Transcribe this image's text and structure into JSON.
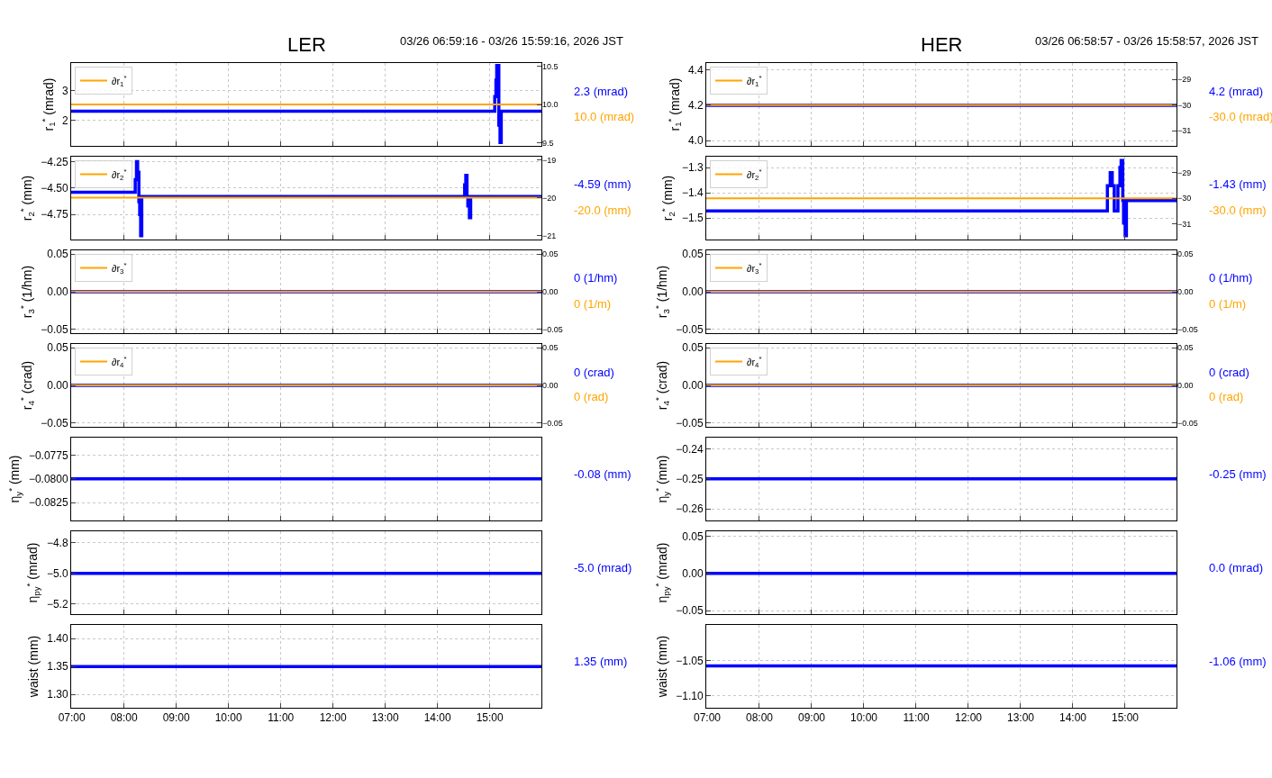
{
  "chart_data": [
    {
      "type": "step",
      "title": "LER",
      "subtitle": "03/26 06:59:16 - 03/26 15:59:16, 2026 JST",
      "ylabel": "r$_{1}$$^{*}$ (mrad)",
      "x": [
        6.988,
        15.988
      ],
      "xlim": [
        6.988,
        15.988
      ],
      "xticks": [
        {
          "value": 7,
          "label": null
        },
        {
          "value": 8,
          "label": null
        },
        {
          "value": 9,
          "label": null
        },
        {
          "value": 10,
          "label": null
        },
        {
          "value": 11,
          "label": null
        },
        {
          "value": 12,
          "label": null
        },
        {
          "value": 13,
          "label": null
        },
        {
          "value": 14,
          "label": null
        },
        {
          "value": 15,
          "label": null
        }
      ],
      "ylim": [
        1.16,
        3.91
      ],
      "yticks": [
        2,
        3
      ],
      "y2lim": [
        9.46,
        10.54
      ],
      "y2ticks": [
        9.5,
        {
          "value": 10,
          "label": "10.0"
        },
        10.5
      ],
      "grid": true,
      "legend": "top left",
      "tick_labels": "y",
      "series": [
        {
          "color": "#0000ff",
          "x": [
            6.988,
            15.095,
            15.118,
            15.133,
            15.173,
            15.196,
            15.219,
            15.988
          ],
          "values": [
            2.31,
            2.8,
            3.34,
            3.83,
            1.85,
            1.27,
            2.31,
            2.31
          ]
        },
        {
          "name": "∂r$_{1}$$^{*}$",
          "color": "#ffa500",
          "axis": "y2",
          "values": [
            10.0,
            10.0
          ]
        }
      ],
      "annotations": [
        "2.3 (mrad)",
        "10.0 (mrad)"
      ]
    },
    {
      "type": "step",
      "ylabel": "r$_{2}$$^{*}$ (mm)",
      "x": [
        6.988,
        15.988
      ],
      "xlim": [
        6.988,
        15.988
      ],
      "xticks": [
        {
          "value": 7,
          "label": null
        },
        {
          "value": 8,
          "label": null
        },
        {
          "value": 9,
          "label": null
        },
        {
          "value": 10,
          "label": null
        },
        {
          "value": 11,
          "label": null
        },
        {
          "value": 12,
          "label": null
        },
        {
          "value": 13,
          "label": null
        },
        {
          "value": 14,
          "label": null
        },
        {
          "value": 15,
          "label": null
        }
      ],
      "ylim": [
        -4.987,
        -4.203
      ],
      "yticks": [
        {
          "value": -4.75,
          "label": "−4.75"
        },
        {
          "value": -4.5,
          "label": "−4.50"
        },
        {
          "value": -4.25,
          "label": "−4.25"
        }
      ],
      "y2lim": [
        -21.1,
        -18.92
      ],
      "y2ticks": [
        {
          "value": -21,
          "label": "−21"
        },
        {
          "value": -20,
          "label": "−20"
        },
        {
          "value": -19,
          "label": "−19"
        }
      ],
      "grid": true,
      "legend": "top left",
      "tick_labels": "y",
      "series": [
        {
          "color": "#0000ff",
          "x": [
            6.988,
            8.214,
            8.238,
            8.26,
            8.284,
            8.3,
            8.318,
            8.339,
            14.519,
            14.541,
            14.564,
            14.58,
            14.61,
            14.634,
            15.988
          ],
          "values": [
            -4.54,
            -4.42,
            -4.25,
            -4.35,
            -4.63,
            -4.75,
            -4.95,
            -4.58,
            -4.47,
            -4.38,
            -4.58,
            -4.67,
            -4.78,
            -4.58,
            -4.58
          ]
        },
        {
          "name": "∂r$_{2}$$^{*}$",
          "color": "#ffa500",
          "axis": "y2",
          "values": [
            -20.0,
            -20.0
          ]
        }
      ],
      "annotations": [
        "-4.59 (mm)",
        "-20.0 (mm)"
      ]
    },
    {
      "type": "step",
      "ylabel": "r$_{3}$$^{*}$ (1/hm)",
      "x": [
        6.988,
        15.988
      ],
      "xlim": [
        6.988,
        15.988
      ],
      "xticks": [
        {
          "value": 7,
          "label": null
        },
        {
          "value": 8,
          "label": null
        },
        {
          "value": 9,
          "label": null
        },
        {
          "value": 10,
          "label": null
        },
        {
          "value": 11,
          "label": null
        },
        {
          "value": 12,
          "label": null
        },
        {
          "value": 13,
          "label": null
        },
        {
          "value": 14,
          "label": null
        },
        {
          "value": 15,
          "label": null
        }
      ],
      "ylim": [
        -0.055,
        0.055
      ],
      "yticks": [
        {
          "value": -0.05,
          "label": "−0.05"
        },
        {
          "value": 0,
          "label": "0.00"
        },
        {
          "value": 0.05,
          "label": "0.05"
        }
      ],
      "y2lim": [
        -0.055,
        0.055
      ],
      "y2ticks": [
        {
          "value": -0.05,
          "label": "−0.05"
        },
        {
          "value": 0,
          "label": "0.00"
        },
        {
          "value": 0.05,
          "label": "0.05"
        }
      ],
      "grid": true,
      "legend": "top left",
      "tick_labels": "y",
      "series": [
        {
          "color": "#0000ff",
          "values": [
            0,
            0
          ]
        },
        {
          "name": "∂r$_{3}$$^{*}$",
          "color": "#ffa500",
          "axis": "y2",
          "values": [
            0,
            0
          ]
        }
      ],
      "annotations": [
        "0 (1/hm)",
        "0 (1/m)"
      ]
    },
    {
      "type": "step",
      "ylabel": "r$_{4}$$^{*}$ (crad)",
      "x": [
        6.988,
        15.988
      ],
      "xlim": [
        6.988,
        15.988
      ],
      "xticks": [
        {
          "value": 7,
          "label": null
        },
        {
          "value": 8,
          "label": null
        },
        {
          "value": 9,
          "label": null
        },
        {
          "value": 10,
          "label": null
        },
        {
          "value": 11,
          "label": null
        },
        {
          "value": 12,
          "label": null
        },
        {
          "value": 13,
          "label": null
        },
        {
          "value": 14,
          "label": null
        },
        {
          "value": 15,
          "label": null
        }
      ],
      "ylim": [
        -0.055,
        0.055
      ],
      "yticks": [
        {
          "value": -0.05,
          "label": "−0.05"
        },
        {
          "value": 0,
          "label": "0.00"
        },
        {
          "value": 0.05,
          "label": "0.05"
        }
      ],
      "y2lim": [
        -0.055,
        0.055
      ],
      "y2ticks": [
        {
          "value": -0.05,
          "label": "−0.05"
        },
        {
          "value": 0,
          "label": "0.00"
        },
        {
          "value": 0.05,
          "label": "0.05"
        }
      ],
      "grid": true,
      "legend": "top left",
      "tick_labels": "y",
      "series": [
        {
          "color": "#0000ff",
          "values": [
            0,
            0
          ]
        },
        {
          "name": "∂r$_{4}$$^{*}$",
          "color": "#ffa500",
          "axis": "y2",
          "values": [
            0,
            0
          ]
        }
      ],
      "annotations": [
        "0 (crad)",
        "0 (rad)"
      ]
    },
    {
      "type": "step",
      "ylabel": "η$_{y}$$^{*}$ (mm)",
      "x": [
        6.988,
        15.988
      ],
      "xlim": [
        6.988,
        15.988
      ],
      "xticks": [
        {
          "value": 7,
          "label": null
        },
        {
          "value": 8,
          "label": null
        },
        {
          "value": 9,
          "label": null
        },
        {
          "value": 10,
          "label": null
        },
        {
          "value": 11,
          "label": null
        },
        {
          "value": 12,
          "label": null
        },
        {
          "value": 13,
          "label": null
        },
        {
          "value": 14,
          "label": null
        },
        {
          "value": 15,
          "label": null
        }
      ],
      "ylim": [
        -0.08439,
        -0.07565
      ],
      "yticks": [
        {
          "value": -0.0825,
          "label": "−0.0825"
        },
        {
          "value": -0.08,
          "label": "−0.0800"
        },
        {
          "value": -0.0775,
          "label": "−0.0775"
        }
      ],
      "grid": true,
      "tick_labels": "y",
      "series": [
        {
          "color": "#0000ff",
          "values": [
            -0.08,
            -0.08
          ]
        }
      ],
      "annotations": [
        "-0.08 (mm)"
      ]
    },
    {
      "type": "step",
      "ylabel": "η$_{py}$$^{*}$ (mrad)",
      "x": [
        6.988,
        15.988
      ],
      "xlim": [
        6.988,
        15.988
      ],
      "xticks": [
        {
          "value": 7,
          "label": null
        },
        {
          "value": 8,
          "label": null
        },
        {
          "value": 9,
          "label": null
        },
        {
          "value": 10,
          "label": null
        },
        {
          "value": 11,
          "label": null
        },
        {
          "value": 12,
          "label": null
        },
        {
          "value": 13,
          "label": null
        },
        {
          "value": 14,
          "label": null
        },
        {
          "value": 15,
          "label": null
        }
      ],
      "ylim": [
        -5.269,
        -4.723
      ],
      "yticks": [
        {
          "value": -5.2,
          "label": "−5.2"
        },
        {
          "value": -5.0,
          "label": "−5.0"
        },
        {
          "value": -4.8,
          "label": "−4.8"
        }
      ],
      "grid": true,
      "tick_labels": "y",
      "series": [
        {
          "color": "#0000ff",
          "values": [
            -5.0,
            -5.0
          ]
        }
      ],
      "annotations": [
        "-5.0 (mrad)"
      ]
    },
    {
      "type": "step",
      "ylabel": "waist (mm)",
      "x": [
        6.988,
        15.988
      ],
      "xlim": [
        6.988,
        15.988
      ],
      "xticks": [
        {
          "value": 7,
          "label": "07:00"
        },
        {
          "value": 8,
          "label": "08:00"
        },
        {
          "value": 9,
          "label": "09:00"
        },
        {
          "value": 10,
          "label": "10:00"
        },
        {
          "value": 11,
          "label": "11:00"
        },
        {
          "value": 12,
          "label": "12:00"
        },
        {
          "value": 13,
          "label": "13:00"
        },
        {
          "value": 14,
          "label": "14:00"
        },
        {
          "value": 15,
          "label": "15:00"
        }
      ],
      "ylim": [
        1.276,
        1.4247
      ],
      "yticks": [
        {
          "value": 1.3,
          "label": "1.30"
        },
        {
          "value": 1.35,
          "label": "1.35"
        },
        {
          "value": 1.4,
          "label": "1.40"
        }
      ],
      "grid": true,
      "series": [
        {
          "color": "#0000ff",
          "values": [
            1.35,
            1.35
          ]
        }
      ],
      "annotations": [
        "1.35 (mm)"
      ]
    },
    {
      "type": "step",
      "title": "HER",
      "subtitle": "03/26 06:58:57 - 03/26 15:58:57, 2026 JST",
      "ylabel": "r$_{1}$$^{*}$ (mrad)",
      "x": [
        6.983,
        15.983
      ],
      "xlim": [
        6.983,
        15.983
      ],
      "xticks": [
        {
          "value": 7,
          "label": null
        },
        {
          "value": 8,
          "label": null
        },
        {
          "value": 9,
          "label": null
        },
        {
          "value": 10,
          "label": null
        },
        {
          "value": 11,
          "label": null
        },
        {
          "value": 12,
          "label": null
        },
        {
          "value": 13,
          "label": null
        },
        {
          "value": 14,
          "label": null
        },
        {
          "value": 15,
          "label": null
        }
      ],
      "ylim": [
        3.97,
        4.44
      ],
      "yticks": [
        {
          "value": 4.0,
          "label": "4.0"
        },
        {
          "value": 4.2,
          "label": "4.2"
        },
        {
          "value": 4.4,
          "label": "4.4"
        }
      ],
      "y2lim": [
        -31.59,
        -28.36
      ],
      "y2ticks": [
        {
          "value": -31,
          "label": "−31"
        },
        {
          "value": -30,
          "label": "−30"
        },
        {
          "value": -29,
          "label": "−29"
        }
      ],
      "grid": true,
      "legend": "top left",
      "tick_labels": "y",
      "series": [
        {
          "color": "#0000ff",
          "values": [
            4.2,
            4.2
          ]
        },
        {
          "name": "∂r$_{1}$$^{*}$",
          "color": "#ffa500",
          "axis": "y2",
          "values": [
            -30.0,
            -30.0
          ]
        }
      ],
      "annotations": [
        "4.2 (mrad)",
        "-30.0 (mrad)"
      ]
    },
    {
      "type": "step",
      "ylabel": "r$_{2}$$^{*}$ (mm)",
      "x": [
        6.983,
        15.983
      ],
      "xlim": [
        6.983,
        15.983
      ],
      "xticks": [
        {
          "value": 7,
          "label": null
        },
        {
          "value": 8,
          "label": null
        },
        {
          "value": 9,
          "label": null
        },
        {
          "value": 10,
          "label": null
        },
        {
          "value": 11,
          "label": null
        },
        {
          "value": 12,
          "label": null
        },
        {
          "value": 13,
          "label": null
        },
        {
          "value": 14,
          "label": null
        },
        {
          "value": 15,
          "label": null
        }
      ],
      "ylim": [
        -1.585,
        -1.257
      ],
      "yticks": [
        {
          "value": -1.5,
          "label": "−1.5"
        },
        {
          "value": -1.4,
          "label": "−1.4"
        },
        {
          "value": -1.3,
          "label": "−1.3"
        }
      ],
      "y2lim": [
        -31.61,
        -28.38
      ],
      "y2ticks": [
        {
          "value": -31,
          "label": "−31"
        },
        {
          "value": -30,
          "label": "−30"
        },
        {
          "value": -29,
          "label": "−29"
        }
      ],
      "grid": true,
      "legend": "top left",
      "tick_labels": "y",
      "series": [
        {
          "color": "#0000ff",
          "x": [
            6.983,
            14.66,
            14.714,
            14.753,
            14.792,
            14.862,
            14.9,
            14.923,
            14.954,
            14.97,
            15.0,
            15.024,
            15.983
          ],
          "values": [
            -1.472,
            -1.372,
            -1.32,
            -1.372,
            -1.472,
            -1.372,
            -1.3,
            -1.272,
            -1.43,
            -1.52,
            -1.57,
            -1.431,
            -1.431
          ]
        },
        {
          "name": "∂r$_{2}$$^{*}$",
          "color": "#ffa500",
          "axis": "y2",
          "values": [
            -30.0,
            -30.0
          ]
        }
      ],
      "annotations": [
        "-1.43 (mm)",
        "-30.0 (mm)"
      ]
    },
    {
      "type": "step",
      "ylabel": "r$_{3}$$^{*}$ (1/hm)",
      "x": [
        6.983,
        15.983
      ],
      "xlim": [
        6.983,
        15.983
      ],
      "xticks": [
        {
          "value": 7,
          "label": null
        },
        {
          "value": 8,
          "label": null
        },
        {
          "value": 9,
          "label": null
        },
        {
          "value": 10,
          "label": null
        },
        {
          "value": 11,
          "label": null
        },
        {
          "value": 12,
          "label": null
        },
        {
          "value": 13,
          "label": null
        },
        {
          "value": 14,
          "label": null
        },
        {
          "value": 15,
          "label": null
        }
      ],
      "ylim": [
        -0.055,
        0.055
      ],
      "yticks": [
        {
          "value": -0.05,
          "label": "−0.05"
        },
        {
          "value": 0,
          "label": "0.00"
        },
        {
          "value": 0.05,
          "label": "0.05"
        }
      ],
      "y2lim": [
        -0.055,
        0.055
      ],
      "y2ticks": [
        {
          "value": -0.05,
          "label": "−0.05"
        },
        {
          "value": 0,
          "label": "0.00"
        },
        {
          "value": 0.05,
          "label": "0.05"
        }
      ],
      "grid": true,
      "legend": "top left",
      "tick_labels": "y",
      "series": [
        {
          "color": "#0000ff",
          "values": [
            0,
            0
          ]
        },
        {
          "name": "∂r$_{3}$$^{*}$",
          "color": "#ffa500",
          "axis": "y2",
          "values": [
            0,
            0
          ]
        }
      ],
      "annotations": [
        "0 (1/hm)",
        "0 (1/m)"
      ]
    },
    {
      "type": "step",
      "ylabel": "r$_{4}$$^{*}$ (crad)",
      "x": [
        6.983,
        15.983
      ],
      "xlim": [
        6.983,
        15.983
      ],
      "xticks": [
        {
          "value": 7,
          "label": null
        },
        {
          "value": 8,
          "label": null
        },
        {
          "value": 9,
          "label": null
        },
        {
          "value": 10,
          "label": null
        },
        {
          "value": 11,
          "label": null
        },
        {
          "value": 12,
          "label": null
        },
        {
          "value": 13,
          "label": null
        },
        {
          "value": 14,
          "label": null
        },
        {
          "value": 15,
          "label": null
        }
      ],
      "ylim": [
        -0.055,
        0.055
      ],
      "yticks": [
        {
          "value": -0.05,
          "label": "−0.05"
        },
        {
          "value": 0,
          "label": "0.00"
        },
        {
          "value": 0.05,
          "label": "0.05"
        }
      ],
      "y2lim": [
        -0.055,
        0.055
      ],
      "y2ticks": [
        {
          "value": -0.05,
          "label": "−0.05"
        },
        {
          "value": 0,
          "label": "0.00"
        },
        {
          "value": 0.05,
          "label": "0.05"
        }
      ],
      "grid": true,
      "legend": "top left",
      "tick_labels": "y",
      "series": [
        {
          "color": "#0000ff",
          "values": [
            0,
            0
          ]
        },
        {
          "name": "∂r$_{4}$$^{*}$",
          "color": "#ffa500",
          "axis": "y2",
          "values": [
            0,
            0
          ]
        }
      ],
      "annotations": [
        "0 (crad)",
        "0 (rad)"
      ]
    },
    {
      "type": "step",
      "ylabel": "η$_{y}$$^{*}$ (mm)",
      "x": [
        6.983,
        15.983
      ],
      "xlim": [
        6.983,
        15.983
      ],
      "xticks": [
        {
          "value": 7,
          "label": null
        },
        {
          "value": 8,
          "label": null
        },
        {
          "value": 9,
          "label": null
        },
        {
          "value": 10,
          "label": null
        },
        {
          "value": 11,
          "label": null
        },
        {
          "value": 12,
          "label": null
        },
        {
          "value": 13,
          "label": null
        },
        {
          "value": 14,
          "label": null
        },
        {
          "value": 15,
          "label": null
        }
      ],
      "ylim": [
        -0.2639,
        -0.2362
      ],
      "yticks": [
        {
          "value": -0.26,
          "label": "−0.26"
        },
        {
          "value": -0.25,
          "label": "−0.25"
        },
        {
          "value": -0.24,
          "label": "−0.24"
        }
      ],
      "grid": true,
      "tick_labels": "y",
      "series": [
        {
          "color": "#0000ff",
          "values": [
            -0.25,
            -0.25
          ]
        }
      ],
      "annotations": [
        "-0.25 (mm)"
      ]
    },
    {
      "type": "step",
      "ylabel": "η$_{py}$$^{*}$ (mrad)",
      "x": [
        6.983,
        15.983
      ],
      "xlim": [
        6.983,
        15.983
      ],
      "xticks": [
        {
          "value": 7,
          "label": null
        },
        {
          "value": 8,
          "label": null
        },
        {
          "value": 9,
          "label": null
        },
        {
          "value": 10,
          "label": null
        },
        {
          "value": 11,
          "label": null
        },
        {
          "value": 12,
          "label": null
        },
        {
          "value": 13,
          "label": null
        },
        {
          "value": 14,
          "label": null
        },
        {
          "value": 15,
          "label": null
        }
      ],
      "ylim": [
        -0.0547,
        0.0565
      ],
      "yticks": [
        {
          "value": -0.05,
          "label": "−0.05"
        },
        {
          "value": 0,
          "label": "0.00"
        },
        {
          "value": 0.05,
          "label": "0.05"
        }
      ],
      "grid": true,
      "tick_labels": "y",
      "series": [
        {
          "color": "#0000ff",
          "values": [
            0,
            0
          ]
        }
      ],
      "annotations": [
        "0.0 (mrad)"
      ]
    },
    {
      "type": "step",
      "ylabel": "waist (mm)",
      "x": [
        6.983,
        15.983
      ],
      "xlim": [
        6.983,
        15.983
      ],
      "xticks": [
        {
          "value": 7,
          "label": "07:00"
        },
        {
          "value": 8,
          "label": "08:00"
        },
        {
          "value": 9,
          "label": "09:00"
        },
        {
          "value": 10,
          "label": "10:00"
        },
        {
          "value": 11,
          "label": "11:00"
        },
        {
          "value": 12,
          "label": "12:00"
        },
        {
          "value": 13,
          "label": "13:00"
        },
        {
          "value": 14,
          "label": "14:00"
        },
        {
          "value": 15,
          "label": "15:00"
        }
      ],
      "ylim": [
        -1.117,
        -1.0
      ],
      "yticks": [
        {
          "value": -1.1,
          "label": "−1.10"
        },
        {
          "value": -1.05,
          "label": "−1.05"
        }
      ],
      "grid": true,
      "series": [
        {
          "color": "#0000ff",
          "values": [
            -1.058,
            -1.058
          ]
        }
      ],
      "annotations": [
        "-1.06 (mm)"
      ]
    }
  ]
}
